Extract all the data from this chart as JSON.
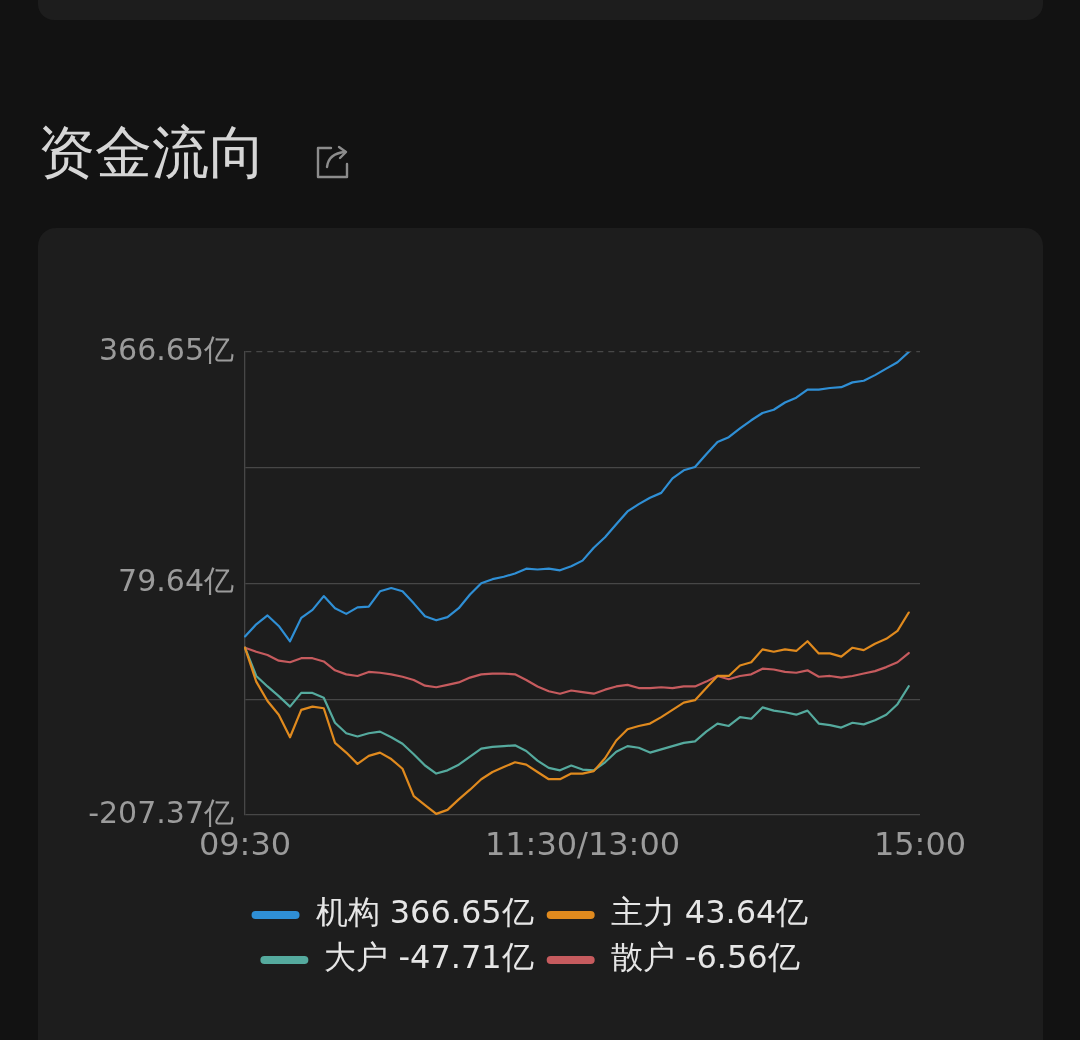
{
  "chart_data": {
    "type": "line",
    "title": "资金流向",
    "categories": [
      "09:30",
      null,
      null,
      null,
      null,
      null,
      null,
      null,
      null,
      null,
      null,
      null,
      null,
      null,
      null,
      null,
      null,
      null,
      null,
      null,
      null,
      null,
      null,
      null,
      null,
      null,
      null,
      null,
      null,
      null,
      "11:30/13:00",
      null,
      null,
      null,
      null,
      null,
      null,
      null,
      null,
      null,
      null,
      null,
      null,
      null,
      null,
      null,
      null,
      null,
      null,
      null,
      null,
      null,
      null,
      null,
      null,
      null,
      null,
      null,
      null,
      null,
      "15:00"
    ],
    "ylim": [
      -207.37,
      366.65
    ],
    "yticks": [
      {
        "value": 366.65,
        "label": "366.65亿"
      },
      {
        "value": 223.15,
        "label": null
      },
      {
        "value": 79.64,
        "label": "79.64亿"
      },
      {
        "value": -63.87,
        "label": null
      },
      {
        "value": -207.37,
        "label": "-207.37亿"
      }
    ],
    "grid": "y",
    "legend": "bottom",
    "marker": "none",
    "line_style": "solid",
    "series": [
      {
        "name": "机构 366.65亿",
        "color": "#2f8fd5",
        "values": [
          14,
          29,
          40,
          27,
          8,
          37,
          47,
          64,
          49,
          42,
          50,
          51,
          70,
          74,
          70,
          55,
          39,
          34,
          38,
          49,
          66,
          80,
          85,
          88,
          92,
          98,
          97,
          98,
          96,
          101,
          108,
          124,
          137,
          153,
          169,
          178,
          186,
          192,
          210,
          220,
          224,
          240,
          255,
          261,
          272,
          282,
          291,
          295,
          304,
          310,
          320,
          320,
          322,
          323,
          329,
          331,
          338,
          346,
          354,
          366.65,
          null
        ]
      },
      {
        "name": "主力 43.64亿",
        "color": "#e08a1e",
        "values": [
          0,
          -42,
          -66,
          -83,
          -111,
          -77,
          -73,
          -75,
          -118,
          -130,
          -144,
          -134,
          -130,
          -138,
          -150,
          -184,
          -195,
          -206,
          -201,
          -188,
          -176,
          -163,
          -154,
          -148,
          -142,
          -145,
          -154,
          -163,
          -163,
          -156,
          -156,
          -153,
          -137,
          -115,
          -101,
          -97,
          -94,
          -86,
          -77,
          -68,
          -65,
          -50,
          -35,
          -35,
          -22,
          -18,
          -2,
          -5,
          -2,
          -4,
          8,
          -7,
          -7,
          -11,
          0,
          -3,
          5,
          11,
          21,
          43.64,
          null
        ]
      },
      {
        "name": "大户 -47.71亿",
        "color": "#55aa9e",
        "values": [
          0,
          -35,
          -48,
          -60,
          -73,
          -56,
          -56,
          -62,
          -93,
          -106,
          -110,
          -106,
          -104,
          -111,
          -119,
          -132,
          -146,
          -156,
          -152,
          -145,
          -135,
          -125,
          -123,
          -122,
          -121,
          -128,
          -140,
          -149,
          -152,
          -146,
          -151,
          -152,
          -142,
          -129,
          -122,
          -124,
          -130,
          -126,
          -122,
          -118,
          -116,
          -104,
          -94,
          -97,
          -86,
          -88,
          -74,
          -78,
          -80,
          -83,
          -78,
          -94,
          -96,
          -99,
          -93,
          -95,
          -90,
          -83,
          -70,
          -47.71,
          null
        ]
      },
      {
        "name": "散户 -6.56亿",
        "color": "#c65b5e",
        "values": [
          0,
          -5,
          -9,
          -16,
          -18,
          -13,
          -13,
          -17,
          -28,
          -33,
          -35,
          -30,
          -31,
          -33,
          -36,
          -40,
          -47,
          -49,
          -46,
          -43,
          -37,
          -33,
          -32,
          -32,
          -33,
          -40,
          -48,
          -54,
          -57,
          -53,
          -55,
          -57,
          -52,
          -48,
          -46,
          -50,
          -50,
          -49,
          -50,
          -48,
          -48,
          -42,
          -35,
          -39,
          -35,
          -33,
          -26,
          -27,
          -30,
          -31,
          -28,
          -36,
          -35,
          -37,
          -35,
          -32,
          -29,
          -24,
          -18,
          -6.56,
          null
        ]
      }
    ]
  }
}
